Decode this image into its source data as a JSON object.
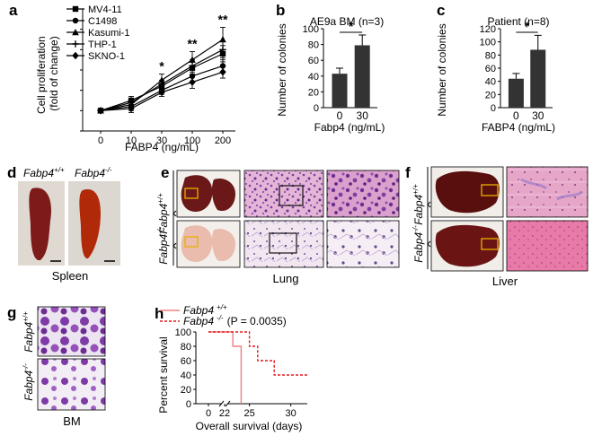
{
  "panels": {
    "a": "a",
    "b": "b",
    "c": "c",
    "d": "d",
    "e": "e",
    "f": "f",
    "g": "g",
    "h": "h"
  },
  "tissues": {
    "spleen": "Spleen",
    "lung": "Lung",
    "liver": "Liver",
    "bm": "BM"
  },
  "genotypes": {
    "base": "Fabp4",
    "wt_sup": "+/+",
    "ko_sup": "-/-",
    "wt_legend": "Fabp4 +/+",
    "ko_legend": "Fabp4 -/-",
    "pvalue": "(P = 0.0035)"
  },
  "colors": {
    "ink": "#000000",
    "wt_curve": "#f08080",
    "ko_curve": "#e31a1c",
    "bar_fill": "#333333",
    "control_bar_fill": "#333333",
    "roi_box": "#e8b000",
    "spleen": "#7d1a1a",
    "liver": "#5a0f0f",
    "he_pink": "#d9a4c8",
    "he_purple": "#7a3fa0",
    "giemsa": "#8b3fb2"
  },
  "chart_data": [
    {
      "type": "line",
      "panel": "a",
      "xlabel": "FABP4 (ng/mL)",
      "ylabel": "Cell proliferation (fold of change)",
      "x": [
        0,
        10,
        30,
        100,
        200
      ],
      "xticklabels": [
        "0",
        "10",
        "30",
        "100",
        "200"
      ],
      "xscale": "categorical",
      "ylim": [
        0,
        6
      ],
      "yticks": [
        0,
        1,
        2,
        3,
        4,
        5,
        6
      ],
      "significance": [
        "",
        "",
        "*",
        "**",
        "**"
      ],
      "series": [
        {
          "name": "MV4-11",
          "marker": "square",
          "values": [
            1.0,
            1.5,
            2.2,
            3.1,
            3.8
          ]
        },
        {
          "name": "C1498",
          "marker": "circle",
          "values": [
            1.0,
            1.2,
            2.0,
            2.7,
            3.2
          ]
        },
        {
          "name": "Kasumi-1",
          "marker": "triangle",
          "values": [
            1.0,
            1.3,
            2.5,
            3.5,
            4.5
          ]
        },
        {
          "name": "THP-1",
          "marker": "plus",
          "values": [
            1.0,
            1.4,
            2.3,
            3.2,
            4.0
          ]
        },
        {
          "name": "SKNO-1",
          "marker": "diamond",
          "values": [
            1.0,
            1.1,
            1.9,
            2.4,
            2.9
          ]
        }
      ],
      "errors": [
        [
          0.1,
          0.2,
          0.2,
          0.3,
          0.4
        ],
        [
          0.1,
          0.2,
          0.2,
          0.3,
          0.3
        ],
        [
          0.1,
          0.2,
          0.3,
          0.4,
          0.6
        ],
        [
          0.1,
          0.2,
          0.2,
          0.3,
          0.4
        ],
        [
          0.1,
          0.2,
          0.2,
          0.3,
          0.3
        ]
      ]
    },
    {
      "type": "bar",
      "panel": "b",
      "title": "AE9a BM (n=3)",
      "xlabel": "Fabp4 (ng/mL)",
      "ylabel": "Number of colonies",
      "categories": [
        "0",
        "30"
      ],
      "values": [
        43,
        79
      ],
      "errors": [
        7,
        13
      ],
      "ylim": [
        0,
        100
      ],
      "yticks": [
        0,
        20,
        40,
        60,
        80,
        100
      ],
      "significance": "*"
    },
    {
      "type": "bar",
      "panel": "c",
      "title": "Patient (n=8)",
      "xlabel": "FABP4 (ng/mL)",
      "ylabel": "Number of colonies",
      "categories": [
        "0",
        "30"
      ],
      "values": [
        44,
        88
      ],
      "errors": [
        8,
        22
      ],
      "ylim": [
        0,
        120
      ],
      "yticks": [
        0,
        20,
        40,
        60,
        80,
        100,
        120
      ],
      "significance": "*"
    },
    {
      "type": "line",
      "panel": "h",
      "xlabel": "Overall survival (days)",
      "ylabel": "Percent survival",
      "xlim": [
        0,
        32
      ],
      "xticks": [
        0,
        22,
        25,
        30
      ],
      "ylim": [
        0,
        100
      ],
      "yticks": [
        0,
        20,
        40,
        60,
        80,
        100
      ],
      "series": [
        {
          "name": "Fabp4 +/+",
          "style": "solid",
          "x": [
            0,
            23,
            23,
            24,
            24
          ],
          "y": [
            100,
            100,
            80,
            80,
            0
          ]
        },
        {
          "name": "Fabp4 -/-",
          "style": "dashed",
          "x": [
            0,
            25,
            25,
            26,
            26,
            28,
            28,
            32
          ],
          "y": [
            100,
            100,
            80,
            80,
            60,
            60,
            40,
            40
          ]
        }
      ]
    }
  ]
}
